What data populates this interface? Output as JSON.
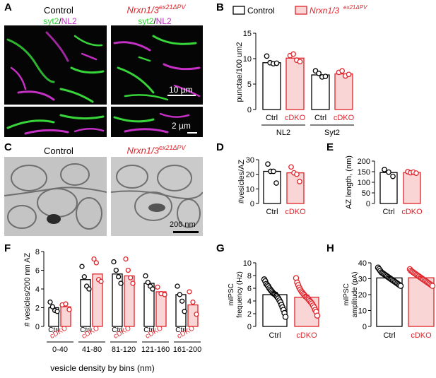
{
  "panels": {
    "A": "A",
    "B": "B",
    "C": "C",
    "D": "D",
    "E": "E",
    "F": "F",
    "G": "G",
    "H": "H"
  },
  "headers": {
    "control": "Control",
    "cdko_main": "Nrxn1/3",
    "cdko_sup": "ex21ΔPV",
    "stain_syt2": "syt2",
    "stain_sep": "/",
    "stain_nl2": "NL2"
  },
  "scalebars": {
    "a_top": "10 µm",
    "a_bottom": "2 µm",
    "c": "200 nm"
  },
  "colors": {
    "ctrl": "#000000",
    "cdko": "#e0242b",
    "cdko_fill": "#f9d5d6",
    "syt2": "#37d43a",
    "nl2": "#c42fc4"
  },
  "chart_data": [
    {
      "panel": "B",
      "type": "bar",
      "legend": [
        {
          "name": "Control"
        },
        {
          "name": "Nrxn1/3",
          "sup": "ex21ΔPV"
        }
      ],
      "legend_placement": "top",
      "ylabel": "punctae/100 um2",
      "ylim": [
        0,
        15
      ],
      "yticks": [
        "0",
        "5",
        "10",
        "15"
      ],
      "groups": [
        {
          "name": "NL2",
          "bars": [
            {
              "label": "Ctrl",
              "value": 9.2,
              "points": [
                10.5,
                9.2,
                9.0,
                9.1
              ]
            },
            {
              "label": "cDKO",
              "value": 10.1,
              "points": [
                10.6,
                10.9,
                9.7,
                9.4
              ]
            }
          ]
        },
        {
          "name": "Syt2",
          "bars": [
            {
              "label": "Ctrl",
              "value": 6.8,
              "points": [
                7.6,
                7.1,
                6.4,
                6.5
              ]
            },
            {
              "label": "cDKO",
              "value": 7.0,
              "points": [
                7.3,
                7.6,
                6.6,
                6.9
              ]
            }
          ]
        }
      ]
    },
    {
      "panel": "D",
      "type": "bar",
      "ylabel": "#vesicles/AZ",
      "ylim": [
        0,
        30
      ],
      "yticks": [
        "0",
        "10",
        "20",
        "30"
      ],
      "bars": [
        {
          "label": "Ctrl",
          "value": 22,
          "points": [
            27,
            22,
            22,
            14
          ]
        },
        {
          "label": "cDKO",
          "value": 21,
          "points": [
            25,
            21,
            20,
            15
          ]
        }
      ]
    },
    {
      "panel": "E",
      "type": "bar",
      "ylabel": "AZ length, (nm)",
      "ylim": [
        0,
        200
      ],
      "yticks": [
        "0",
        "50",
        "100",
        "150",
        "200"
      ],
      "bars": [
        {
          "label": "Ctrl",
          "value": 146,
          "points": [
            160,
            148,
            128
          ]
        },
        {
          "label": "cDKO",
          "value": 146,
          "points": [
            150,
            145,
            148,
            143
          ]
        }
      ]
    },
    {
      "panel": "F",
      "type": "bar",
      "ylabel": "# vesicles/200 nm AZ",
      "xlabel": "vesicle density by bins (nm)",
      "ylim": [
        0,
        8
      ],
      "yticks": [
        "0",
        "2",
        "4",
        "6",
        "8"
      ],
      "bins": [
        {
          "name": "0-40",
          "ctrl": 2.0,
          "cdko": 2.1,
          "ctrl_points": [
            2.6,
            2.1,
            1.7,
            1.6
          ],
          "cdko_points": [
            2.3,
            2.4,
            1.8
          ]
        },
        {
          "name": "41-80",
          "ctrl": 5.0,
          "cdko": 5.6,
          "ctrl_points": [
            6.4,
            5.3,
            4.3,
            4.0
          ],
          "cdko_points": [
            7.2,
            6.8,
            5.0,
            4.8
          ]
        },
        {
          "name": "81-120",
          "ctrl": 5.6,
          "cdko": 5.4,
          "ctrl_points": [
            6.9,
            6.0,
            5.3,
            4.6
          ],
          "cdko_points": [
            7.2,
            6.0,
            5.2,
            4.6
          ]
        },
        {
          "name": "121-160",
          "ctrl": 4.6,
          "cdko": 3.7,
          "ctrl_points": [
            5.4,
            4.7,
            4.3,
            4.0
          ],
          "cdko_points": [
            4.2,
            3.5,
            3.4
          ]
        },
        {
          "name": "161-200",
          "ctrl": 3.4,
          "cdko": 2.3,
          "ctrl_points": [
            4.3,
            3.4,
            2.7,
            1.6
          ],
          "cdko_points": [
            3.7,
            2.6,
            1.3
          ]
        }
      ],
      "bar_labels": {
        "ctrl": "Ctrl",
        "cdko": "cDKO"
      }
    },
    {
      "panel": "G",
      "type": "bar",
      "ylabel_lines": [
        "mIPSC",
        "frequency (Hz)"
      ],
      "ylim": [
        0,
        10
      ],
      "yticks": [
        "0",
        "2",
        "4",
        "6",
        "8",
        "10"
      ],
      "bars": [
        {
          "label": "Ctrl",
          "value": 5.0,
          "points": [
            7.4,
            7.1,
            6.7,
            6.5,
            6.3,
            6.0,
            5.8,
            5.6,
            5.4,
            5.2,
            5.1,
            5.0,
            4.8,
            4.6,
            4.4,
            4.1,
            3.8,
            3.4,
            3.0,
            2.6,
            2.1,
            1.5
          ]
        },
        {
          "label": "cDKO",
          "value": 4.6,
          "points": [
            7.6,
            6.9,
            6.5,
            6.1,
            5.8,
            5.5,
            5.3,
            5.1,
            4.9,
            4.7,
            4.6,
            4.4,
            4.2,
            4.0,
            3.8,
            3.6,
            3.3,
            3.0,
            2.6,
            2.3,
            1.7
          ]
        }
      ]
    },
    {
      "panel": "H",
      "type": "bar",
      "ylabel_lines": [
        "mIPSC",
        "amplitude (pA)"
      ],
      "ylim": [
        0,
        40
      ],
      "yticks": [
        "0",
        "10",
        "20",
        "30",
        "40"
      ],
      "bars": [
        {
          "label": "Ctrl",
          "value": 30.5,
          "points": [
            37,
            36,
            35,
            34,
            33.5,
            33,
            32.5,
            32,
            31.5,
            31,
            30.5,
            30,
            29.5,
            29,
            28.5,
            28,
            27.5,
            27,
            26.5,
            26,
            25.5
          ]
        },
        {
          "label": "cDKO",
          "value": 30.6,
          "points": [
            36,
            35,
            34.5,
            34,
            33.5,
            33,
            32.5,
            32,
            31.5,
            31,
            30.5,
            30,
            29.5,
            29,
            28.5,
            28,
            27.5,
            27,
            26.5,
            26,
            25.5
          ]
        }
      ]
    }
  ]
}
